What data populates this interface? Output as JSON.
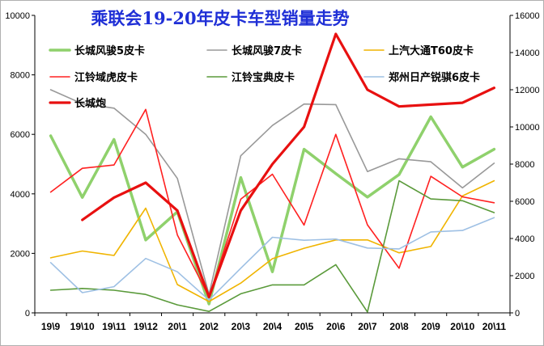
{
  "chart_data": {
    "type": "line",
    "title": "乘联会19-20年皮卡车型销量走势",
    "categories": [
      "19\\9",
      "19\\10",
      "19\\11",
      "19\\12",
      "20\\1",
      "20\\2",
      "20\\3",
      "20\\4",
      "20\\5",
      "20\\6",
      "20\\7",
      "20\\8",
      "20\\9",
      "20\\10",
      "20\\11"
    ],
    "y_left": {
      "min": 0,
      "max": 10000,
      "ticks": [
        0,
        2000,
        4000,
        6000,
        8000,
        10000
      ]
    },
    "y_right": {
      "min": 0,
      "max": 16000,
      "ticks": [
        0,
        2000,
        4000,
        6000,
        8000,
        10000,
        12000,
        14000,
        16000
      ]
    },
    "grid": false,
    "legend_position": "top-left",
    "series": [
      {
        "name": "长城风骏5皮卡",
        "axis": "left",
        "color": "#8fd16c",
        "width": 3.5,
        "values": [
          5950,
          3880,
          5830,
          2450,
          3400,
          300,
          4550,
          1380,
          5500,
          4680,
          3890,
          4650,
          6590,
          4900,
          5500
        ]
      },
      {
        "name": "长城风骏7皮卡",
        "axis": "left",
        "color": "#999999",
        "width": 1.6,
        "values": [
          7500,
          7030,
          6880,
          6000,
          4520,
          620,
          5280,
          6300,
          7020,
          7000,
          4750,
          5180,
          5080,
          4200,
          5030
        ]
      },
      {
        "name": "上汽大通T60皮卡",
        "axis": "left",
        "color": "#f0b400",
        "width": 1.6,
        "values": [
          1850,
          2080,
          1930,
          3520,
          950,
          380,
          1000,
          1820,
          2170,
          2450,
          2450,
          2020,
          2230,
          3930,
          4440
        ]
      },
      {
        "name": "江铃域虎皮卡",
        "axis": "left",
        "color": "#ff2020",
        "width": 1.6,
        "values": [
          4060,
          4860,
          4970,
          6840,
          2620,
          540,
          3820,
          4660,
          2950,
          6000,
          2960,
          1500,
          4590,
          3900,
          3700
        ]
      },
      {
        "name": "江铃宝典皮卡",
        "axis": "left",
        "color": "#5a9a3a",
        "width": 1.6,
        "values": [
          760,
          820,
          760,
          620,
          270,
          50,
          640,
          940,
          940,
          1620,
          30,
          4440,
          3830,
          3770,
          3370
        ]
      },
      {
        "name": "郑州日产锐骐6皮卡",
        "axis": "left",
        "color": "#9ec0e4",
        "width": 1.6,
        "values": [
          1690,
          680,
          880,
          1830,
          1380,
          430,
          1500,
          2540,
          2440,
          2480,
          2180,
          2150,
          2720,
          2770,
          3200
        ]
      },
      {
        "name": "长城炮",
        "axis": "right",
        "color": "#e81010",
        "width": 3.2,
        "values": [
          null,
          5000,
          6200,
          7000,
          5500,
          850,
          5500,
          8000,
          10000,
          15000,
          12000,
          11100,
          11200,
          11300,
          12100
        ]
      }
    ]
  }
}
